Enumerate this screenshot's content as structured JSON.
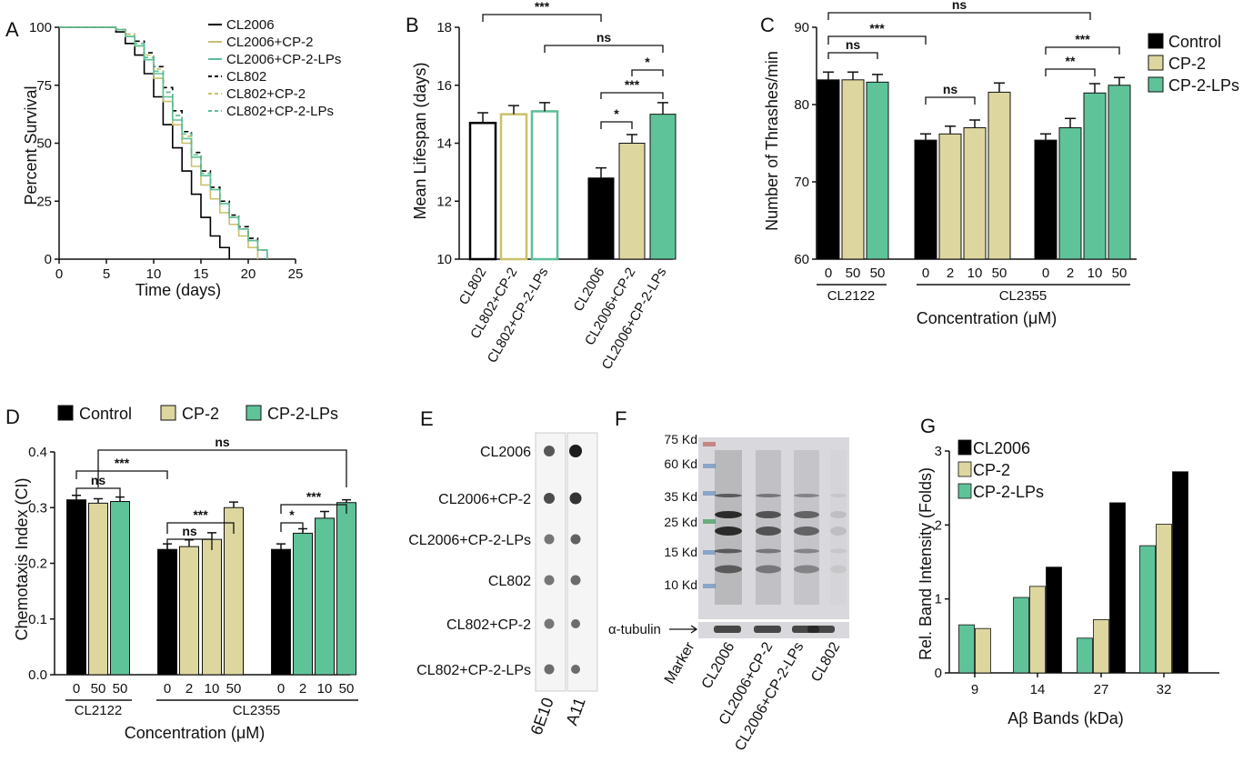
{
  "colors": {
    "control": "#000000",
    "cp2": "#ddd79f",
    "lps": "#5fc39a",
    "cp2_line": "#c8c26a",
    "lps_line": "#5bbf98",
    "blot_bg": "#d9d9dd"
  },
  "chart_data": [
    {
      "panel": "A",
      "type": "line",
      "xlabel": "Time (days)",
      "ylabel": "Percent Survival",
      "xlim": [
        0,
        25
      ],
      "ylim": [
        0,
        100
      ],
      "xticks": [
        "0",
        "5",
        "10",
        "15",
        "20",
        "25"
      ],
      "yticks": [
        "0",
        "25",
        "50",
        "75",
        "100"
      ],
      "legend_position": "top-right",
      "series": [
        {
          "name": "CL2006",
          "style": "solid-black",
          "x": [
            0,
            5,
            6,
            7,
            8,
            9,
            10,
            11,
            12,
            13,
            14,
            15,
            16,
            17,
            18
          ],
          "y": [
            100,
            100,
            98,
            93,
            88,
            80,
            70,
            58,
            48,
            38,
            28,
            18,
            10,
            5,
            0
          ]
        },
        {
          "name": "CL2006+CP-2",
          "style": "solid-olive",
          "x": [
            0,
            5,
            6,
            7,
            8,
            9,
            10,
            11,
            12,
            13,
            14,
            15,
            16,
            17,
            18,
            19,
            20,
            21
          ],
          "y": [
            100,
            100,
            99,
            96,
            92,
            86,
            78,
            68,
            58,
            50,
            40,
            32,
            26,
            20,
            15,
            10,
            5,
            0
          ]
        },
        {
          "name": "CL2006+CP-2-LPs",
          "style": "solid-green",
          "x": [
            0,
            5,
            6,
            7,
            8,
            9,
            10,
            11,
            12,
            13,
            14,
            15,
            16,
            17,
            18,
            19,
            20,
            21,
            22
          ],
          "y": [
            100,
            100,
            99,
            96,
            92,
            86,
            80,
            70,
            60,
            52,
            44,
            36,
            30,
            24,
            18,
            13,
            8,
            4,
            0
          ]
        },
        {
          "name": "CL802",
          "style": "dashed-black",
          "x": [
            0,
            5,
            6,
            7,
            8,
            9,
            10,
            11,
            12,
            13,
            14,
            15,
            16,
            17,
            18,
            19,
            20,
            21,
            22
          ],
          "y": [
            100,
            100,
            99,
            97,
            94,
            89,
            83,
            74,
            64,
            55,
            46,
            38,
            31,
            25,
            19,
            14,
            9,
            4,
            0
          ]
        },
        {
          "name": "CL802+CP-2",
          "style": "dashed-olive",
          "x": [
            0,
            5,
            6,
            7,
            8,
            9,
            10,
            11,
            12,
            13,
            14,
            15,
            16,
            17,
            18,
            19,
            20,
            21,
            22
          ],
          "y": [
            100,
            100,
            99,
            97,
            93,
            88,
            82,
            72,
            62,
            53,
            45,
            37,
            30,
            24,
            18,
            13,
            8,
            4,
            0
          ]
        },
        {
          "name": "CL802+CP-2-LPs",
          "style": "dashed-green",
          "x": [
            0,
            5,
            6,
            7,
            8,
            9,
            10,
            11,
            12,
            13,
            14,
            15,
            16,
            17,
            18,
            19,
            20,
            21,
            22
          ],
          "y": [
            100,
            100,
            99,
            96,
            93,
            87,
            81,
            72,
            62,
            54,
            45,
            37,
            30,
            24,
            18,
            13,
            8,
            4,
            0
          ]
        }
      ]
    },
    {
      "panel": "B",
      "type": "bar",
      "ylabel": "Mean Lifespan (days)",
      "ylim": [
        10,
        18
      ],
      "yticks": [
        "10",
        "12",
        "14",
        "16",
        "18"
      ],
      "categories": [
        "CL802",
        "CL802+CP-2",
        "CL802+CP-2-LPs",
        "CL2006",
        "CL2006+CP-2",
        "CL2006+CP-2-LPs"
      ],
      "values": [
        14.7,
        15.0,
        15.1,
        12.8,
        14.0,
        15.0
      ],
      "errors": [
        0.35,
        0.3,
        0.3,
        0.35,
        0.3,
        0.4
      ],
      "annotations": [
        "***",
        "ns",
        "*",
        "***",
        "*"
      ]
    },
    {
      "panel": "C",
      "type": "bar",
      "ylabel": "Number of Thrashes/min",
      "xlabel": "Concentration (μM)",
      "ylim": [
        60,
        90
      ],
      "yticks": [
        "60",
        "70",
        "80",
        "90"
      ],
      "legend": [
        "Control",
        "CP-2",
        "CP-2-LPs"
      ],
      "legend_position": "top-right",
      "categories": [
        "0",
        "50",
        "50",
        "0",
        "2",
        "10",
        "50",
        "0",
        "2",
        "10",
        "50"
      ],
      "values": [
        83.2,
        83.2,
        82.9,
        75.4,
        76.2,
        77.0,
        81.6,
        75.4,
        77.0,
        81.5,
        82.5
      ],
      "errors": [
        1.0,
        1.0,
        1.0,
        0.8,
        1.0,
        1.0,
        1.2,
        0.8,
        1.2,
        1.2,
        1.0
      ],
      "groups": [
        "CL2122",
        "CL2355"
      ],
      "annotations": [
        "***",
        "ns",
        "ns",
        "ns",
        "***",
        "**"
      ]
    },
    {
      "panel": "D",
      "type": "bar",
      "ylabel": "Chemotaxis Index (CI)",
      "xlabel": "Concentration (μM)",
      "ylim": [
        0.0,
        0.4
      ],
      "yticks": [
        "0.0",
        "0.1",
        "0.2",
        "0.3",
        "0.4"
      ],
      "legend": [
        "Control",
        "CP-2",
        "CP-2-LPs"
      ],
      "legend_position": "top",
      "categories": [
        "0",
        "50",
        "50",
        "0",
        "2",
        "10",
        "50",
        "0",
        "2",
        "10",
        "50"
      ],
      "values": [
        0.314,
        0.308,
        0.311,
        0.225,
        0.23,
        0.243,
        0.3,
        0.225,
        0.254,
        0.281,
        0.309
      ],
      "errors": [
        0.008,
        0.008,
        0.008,
        0.01,
        0.012,
        0.012,
        0.01,
        0.01,
        0.008,
        0.012,
        0.005
      ],
      "groups": [
        "CL2122",
        "CL2355"
      ],
      "annotations": [
        "ns",
        "***",
        "ns",
        "***",
        "ns",
        "***",
        "*"
      ]
    },
    {
      "panel": "G",
      "type": "bar",
      "ylabel": "Rel. Band Intensity (Folds)",
      "xlabel": "Aβ Bands (kDa)",
      "ylim": [
        0,
        3
      ],
      "yticks": [
        "0",
        "1",
        "2",
        "3"
      ],
      "categories": [
        "9",
        "14",
        "27",
        "32"
      ],
      "legend": [
        "CL2006",
        "CP-2",
        "CP-2-LPs"
      ],
      "legend_position": "top-left",
      "series": [
        {
          "name": "CP-2-LPs",
          "values": [
            0.65,
            1.02,
            0.47,
            1.72
          ]
        },
        {
          "name": "CP-2",
          "values": [
            0.6,
            1.17,
            0.72,
            2.01
          ]
        },
        {
          "name": "CL2006",
          "values": [
            null,
            1.43,
            2.3,
            2.72
          ]
        }
      ]
    }
  ],
  "labels": {
    "panel_letters": [
      "A",
      "B",
      "C",
      "D",
      "E",
      "F",
      "G"
    ],
    "sig": {
      "s1": "*",
      "s2": "**",
      "s3": "***",
      "ns": "ns"
    },
    "c_groups": [
      "CL2122",
      "CL2355"
    ],
    "d_groups": [
      "CL2122",
      "CL2355"
    ]
  },
  "panel_e": {
    "rows": [
      "CL2006",
      "CL2006+CP-2",
      "CL2006+CP-2-LPs",
      "CL802",
      "CL802+CP-2",
      "CL802+CP-2-LPs"
    ],
    "cols": [
      "6E10",
      "A11"
    ]
  },
  "panel_f": {
    "markers": [
      "75 Kd",
      "60 Kd",
      "35 Kd",
      "25 Kd",
      "15 Kd",
      "10 Kd"
    ],
    "loading": "α-tubulin",
    "lanes": [
      "Marker",
      "CL2006",
      "CL2006+CP-2",
      "CL2006+CP-2-LPs",
      "CL802"
    ]
  }
}
